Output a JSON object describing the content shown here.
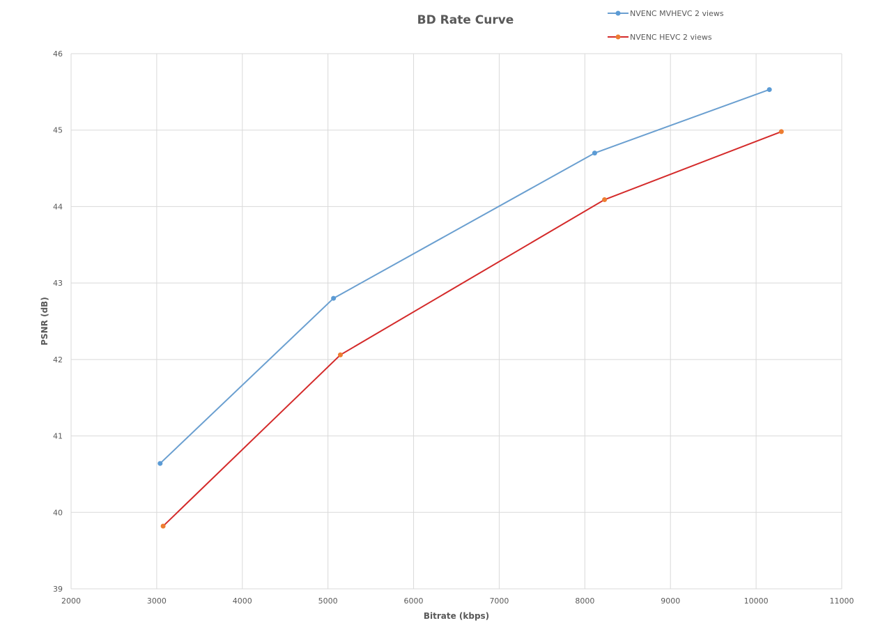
{
  "chart_data": {
    "type": "line",
    "title": "BD Rate Curve",
    "xlabel": "Bitrate (kbps)",
    "ylabel": "PSNR (dB)",
    "xlim": [
      2000,
      11000
    ],
    "ylim": [
      39,
      46
    ],
    "xticks": [
      2000,
      3000,
      4000,
      5000,
      6000,
      7000,
      8000,
      9000,
      10000,
      11000
    ],
    "yticks": [
      39,
      40,
      41,
      42,
      43,
      44,
      45,
      46
    ],
    "grid": true,
    "legend_position": "top-right",
    "series": [
      {
        "name": "NVENC MVHEVC 2 views",
        "line_color": "#6a9fd0",
        "marker_color": "#5b9bd5",
        "x": [
          3040,
          5065,
          8115,
          10155
        ],
        "y": [
          40.64,
          42.8,
          44.7,
          45.53
        ]
      },
      {
        "name": "NVENC HEVC 2 views",
        "line_color": "#d42a2a",
        "marker_color": "#ed7d31",
        "x": [
          3075,
          5145,
          8230,
          10295
        ],
        "y": [
          39.82,
          42.06,
          44.09,
          44.98
        ]
      }
    ]
  }
}
